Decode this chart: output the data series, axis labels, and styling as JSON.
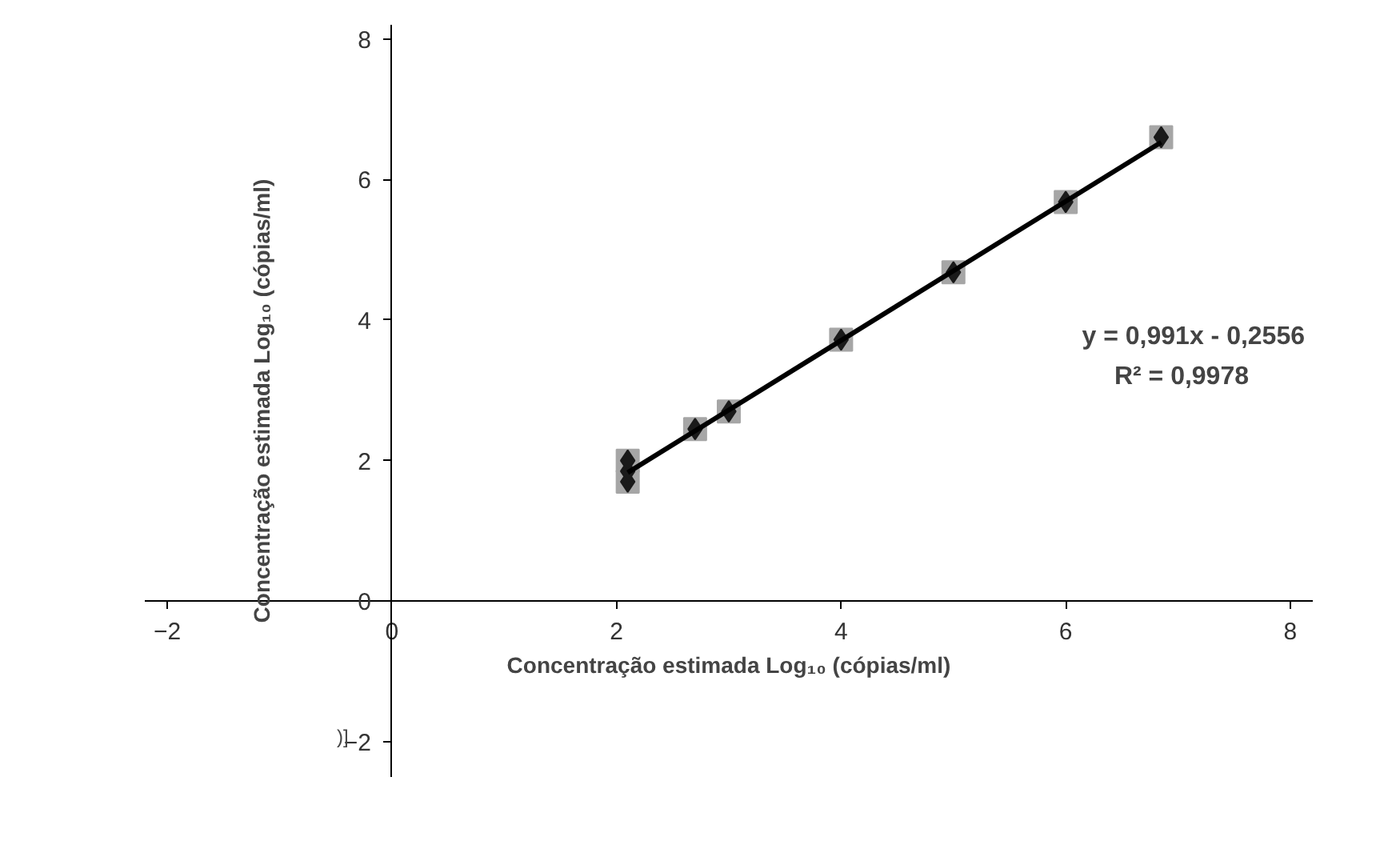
{
  "chart_data": {
    "type": "scatter",
    "xlabel": "Concentração estimada Log₁₀ (cópias/ml)",
    "ylabel": "Concentração estimada Log₁₀ (cópias/ml)",
    "xlim": [
      -2.2,
      8.2
    ],
    "ylim": [
      -2.5,
      8.2
    ],
    "xticks": [
      -2,
      0,
      2,
      4,
      6,
      8
    ],
    "yticks": [
      -2,
      0,
      2,
      4,
      6,
      8
    ],
    "grid": false,
    "series": [
      {
        "marker": "square",
        "color": "#a6a6a6",
        "x": [
          2.1,
          2.1,
          2.7,
          3.0,
          4.0,
          5.0,
          6.0,
          6.85
        ],
        "values": [
          1.7,
          2.0,
          2.45,
          2.7,
          3.72,
          4.68,
          5.68,
          6.6
        ]
      },
      {
        "marker": "diamond",
        "color": "#1a1a1a",
        "x": [
          2.1,
          2.1,
          2.1,
          2.7,
          3.0,
          4.0,
          5.0,
          6.0,
          6.85
        ],
        "values": [
          1.7,
          1.85,
          2.0,
          2.45,
          2.7,
          3.72,
          4.68,
          5.68,
          6.6
        ]
      },
      {
        "type": "line",
        "marker": "none",
        "line_style": "solid",
        "color": "#000000",
        "x": [
          2.1,
          6.85
        ],
        "values": [
          1.83,
          6.53
        ]
      }
    ],
    "annotations": [
      "y = 0,991x - 0,2556",
      "R² = 0,9978",
      ")]"
    ]
  }
}
